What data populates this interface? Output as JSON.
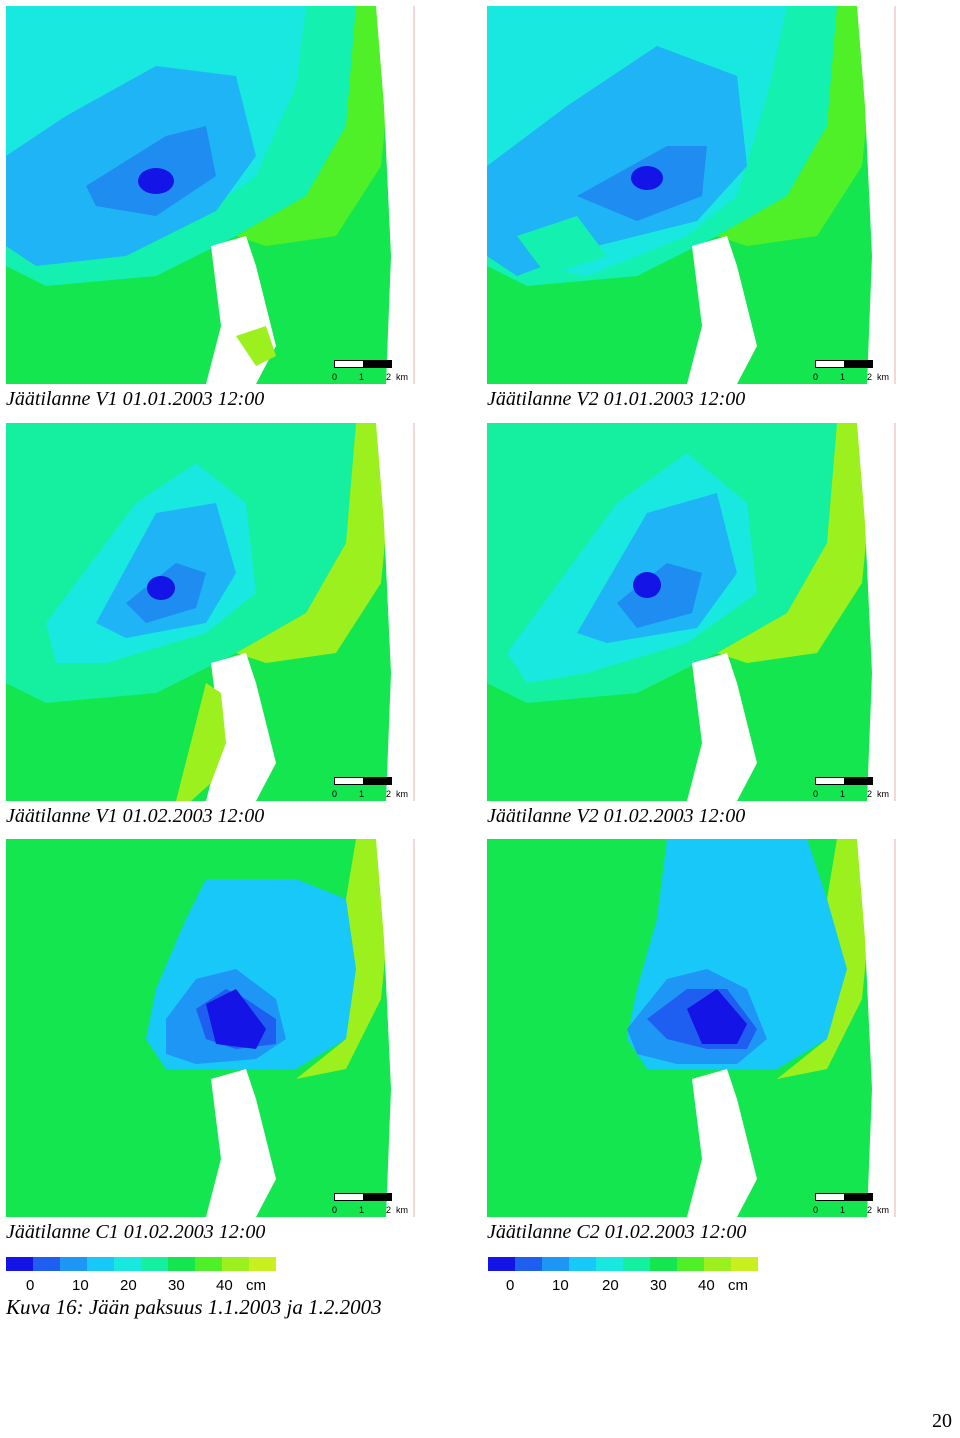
{
  "panels": [
    {
      "caption": "Jäätilanne V1  01.01.2003 12:00"
    },
    {
      "caption": "Jäätilanne V2  01.01.2003 12:00"
    },
    {
      "caption": "Jäätilanne V1  01.02.2003 12:00"
    },
    {
      "caption": "Jäätilanne V2  01.02.2003 12:00"
    },
    {
      "caption": "Jäätilanne C1  01.02.2003 12:00"
    },
    {
      "caption": "Jäätilanne C2 01.02.2003 12:00"
    }
  ],
  "scale": {
    "t0": "0",
    "t1": "1",
    "t2": "2",
    "unit": "km"
  },
  "legend": {
    "colors": [
      "#1414e6",
      "#1e5ef0",
      "#1e96f5",
      "#18c8f8",
      "#18e8e0",
      "#14f0a0",
      "#14e650",
      "#50f028",
      "#9cf01e",
      "#c8f01e"
    ],
    "labels": [
      "0",
      "10",
      "20",
      "30",
      "40",
      "cm"
    ]
  },
  "figure_caption": "Kuva 16: Jään paksuus 1.1.2003 ja 1.2.2003",
  "page_number": "20"
}
